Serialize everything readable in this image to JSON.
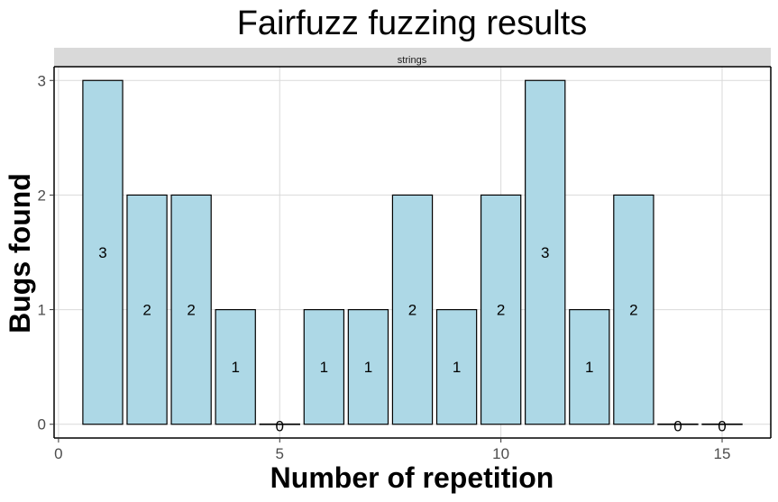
{
  "chart_data": {
    "type": "bar",
    "title": "Fairfuzz fuzzing results",
    "facet": "strings",
    "xlabel": "Number of repetition",
    "ylabel": "Bugs found",
    "x": [
      1,
      2,
      3,
      4,
      5,
      6,
      7,
      8,
      9,
      10,
      11,
      12,
      13,
      14,
      15
    ],
    "values": [
      3,
      2,
      2,
      1,
      0,
      1,
      1,
      2,
      1,
      2,
      3,
      1,
      2,
      0,
      0
    ],
    "data_labels": [
      "3",
      "2",
      "2",
      "1",
      "0",
      "1",
      "1",
      "2",
      "1",
      "2",
      "3",
      "1",
      "2",
      "0",
      "0"
    ],
    "xlim": [
      -0.1,
      16.1
    ],
    "ylim": [
      -0.12,
      3.12
    ],
    "x_ticks": [
      0,
      5,
      10,
      15
    ],
    "x_tick_labels": [
      "0",
      "5",
      "10",
      "15"
    ],
    "y_ticks": [
      0,
      1,
      2,
      3
    ],
    "y_tick_labels": [
      "0",
      "1",
      "2",
      "3"
    ],
    "grid": true,
    "bar_fill": "#add8e6",
    "bar_stroke": "#000000",
    "grid_color": "#d9d9d9",
    "strip_fill": "#d9d9d9"
  }
}
